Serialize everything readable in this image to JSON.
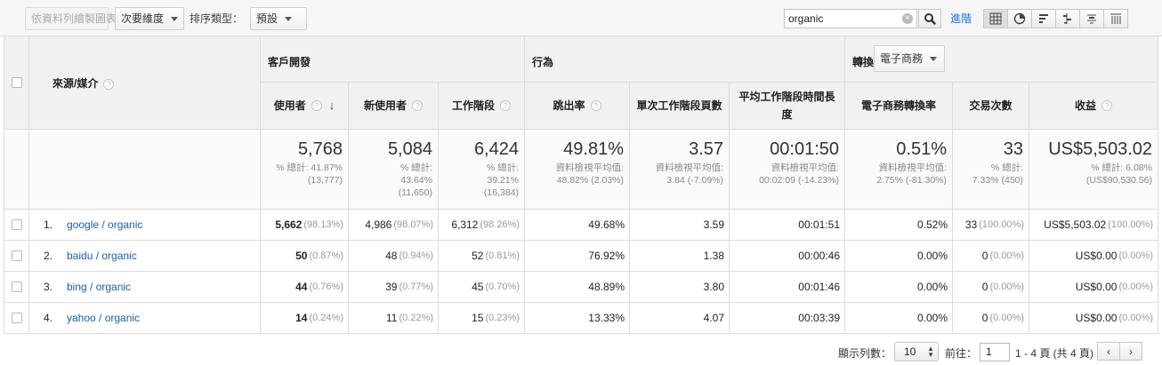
{
  "toolbar": {
    "plot_rows_label": "依資料列繪製圖表",
    "secondary_dimension_label": "次要維度",
    "sort_type_label": "排序類型：",
    "sort_default_label": "預設",
    "search_value": "organic",
    "advanced_label": "進階"
  },
  "header": {
    "source_medium": "來源/媒介",
    "groups": {
      "acquisition": "客戶開發",
      "behavior": "行為",
      "conversion": "轉換",
      "conversion_select": "電子商務"
    },
    "columns": [
      "使用者",
      "新使用者",
      "工作階段",
      "跳出率",
      "單次工作階段頁數",
      "平均工作階段時間長度",
      "電子商務轉換率",
      "交易次數",
      "收益"
    ]
  },
  "summary": [
    {
      "value": "5,768",
      "lines": [
        "% 總計: 41.87%",
        "(13,777)"
      ]
    },
    {
      "value": "5,084",
      "lines": [
        "% 總計:",
        "43.64%",
        "(11,650)"
      ]
    },
    {
      "value": "6,424",
      "lines": [
        "% 總計:",
        "39.21%",
        "(16,384)"
      ]
    },
    {
      "value": "49.81%",
      "lines": [
        "資料檢視平均值:",
        "48.82% (2.03%)"
      ]
    },
    {
      "value": "3.57",
      "lines": [
        "資料檢視平均值:",
        "3.84 (-7.09%)"
      ]
    },
    {
      "value": "00:01:50",
      "lines": [
        "資料檢視平均值:",
        "00:02:09 (-14.23%)"
      ]
    },
    {
      "value": "0.51%",
      "lines": [
        "資料檢視平均值:",
        "2.75% (-81.30%)"
      ]
    },
    {
      "value": "33",
      "lines": [
        "% 總計:",
        "7.33% (450)"
      ]
    },
    {
      "value": "US$5,503.02",
      "lines": [
        "% 總計: 6.08%",
        "(US$90,530.56)"
      ]
    }
  ],
  "rows": [
    {
      "num": "1.",
      "source": "google / organic",
      "users": "5,662",
      "users_pct": "(98.13%)",
      "new_users": "4,986",
      "new_users_pct": "(98.07%)",
      "sessions": "6,312",
      "sessions_pct": "(98.26%)",
      "bounce": "49.68%",
      "pages": "3.59",
      "duration": "00:01:51",
      "conv_rate": "0.52%",
      "transactions": "33",
      "transactions_pct": "(100.00%)",
      "revenue": "US$5,503.02",
      "revenue_pct": "(100.00%)"
    },
    {
      "num": "2.",
      "source": "baidu / organic",
      "users": "50",
      "users_pct": "(0.87%)",
      "new_users": "48",
      "new_users_pct": "(0.94%)",
      "sessions": "52",
      "sessions_pct": "(0.81%)",
      "bounce": "76.92%",
      "pages": "1.38",
      "duration": "00:00:46",
      "conv_rate": "0.00%",
      "transactions": "0",
      "transactions_pct": "(0.00%)",
      "revenue": "US$0.00",
      "revenue_pct": "(0.00%)"
    },
    {
      "num": "3.",
      "source": "bing / organic",
      "users": "44",
      "users_pct": "(0.76%)",
      "new_users": "39",
      "new_users_pct": "(0.77%)",
      "sessions": "45",
      "sessions_pct": "(0.70%)",
      "bounce": "48.89%",
      "pages": "3.80",
      "duration": "00:01:46",
      "conv_rate": "0.00%",
      "transactions": "0",
      "transactions_pct": "(0.00%)",
      "revenue": "US$0.00",
      "revenue_pct": "(0.00%)"
    },
    {
      "num": "4.",
      "source": "yahoo / organic",
      "users": "14",
      "users_pct": "(0.24%)",
      "new_users": "11",
      "new_users_pct": "(0.22%)",
      "sessions": "15",
      "sessions_pct": "(0.23%)",
      "bounce": "13.33%",
      "pages": "4.07",
      "duration": "00:03:39",
      "conv_rate": "0.00%",
      "transactions": "0",
      "transactions_pct": "(0.00%)",
      "revenue": "US$0.00",
      "revenue_pct": "(0.00%)"
    }
  ],
  "footer": {
    "rows_label": "顯示列數：",
    "rows_value": "10",
    "goto_label": "前往：",
    "goto_value": "1",
    "range_label": "1 - 4 頁 (共 4 頁)"
  },
  "icons": {
    "help": "question-mark-icon",
    "clear": "clear-search-icon",
    "search": "magnifier-icon"
  }
}
